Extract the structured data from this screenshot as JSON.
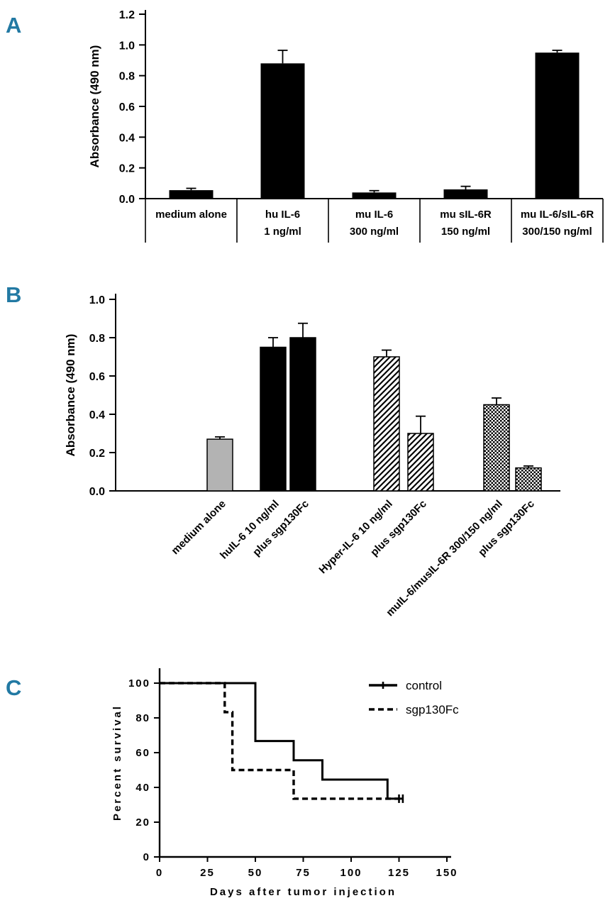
{
  "panels": [
    {
      "label": "A"
    },
    {
      "label": "B"
    },
    {
      "label": "C"
    }
  ],
  "colors": {
    "panel_label": "#2279a3",
    "bar_black": "#000000",
    "bar_gray": "#b3b3b3"
  },
  "chart_data": [
    {
      "id": "chartA",
      "type": "bar",
      "panel": "A",
      "title": "",
      "xlabel": "",
      "ylabel": "Absorbance (490 nm)",
      "ylim": [
        0,
        1.2
      ],
      "yticks": [
        "0.0",
        "0.2",
        "0.4",
        "0.6",
        "0.8",
        "1.0",
        "1.2"
      ],
      "categories": [
        {
          "line1": "medium alone",
          "line2": ""
        },
        {
          "line1": "hu IL-6",
          "line2": "1 ng/ml"
        },
        {
          "line1": "mu IL-6",
          "line2": "300 ng/ml"
        },
        {
          "line1": "mu sIL-6R",
          "line2": "150 ng/ml"
        },
        {
          "line1": "mu IL-6/sIL-6R",
          "line2": "300/150 ng/ml"
        }
      ],
      "values": [
        0.055,
        0.88,
        0.04,
        0.06,
        0.95
      ],
      "errors": [
        0.012,
        0.085,
        0.012,
        0.02,
        0.015
      ],
      "bar_style": [
        "black",
        "black",
        "black",
        "black",
        "black"
      ],
      "grid": false
    },
    {
      "id": "chartB",
      "type": "bar",
      "panel": "B",
      "title": "",
      "xlabel": "",
      "ylabel": "Absorbance (490 nm)",
      "ylim": [
        0,
        1.0
      ],
      "yticks": [
        "0.0",
        "0.2",
        "0.4",
        "0.6",
        "0.8",
        "1.0"
      ],
      "categories": [
        "medium alone",
        "huIL-6 10 ng/ml",
        "plus sgp130Fc",
        "Hyper-IL-6 10 ng/ml",
        "plus sgp130Fc",
        "muIL-6/musIL-6R 300/150 ng/ml",
        "plus sgp130Fc"
      ],
      "values": [
        0.27,
        0.75,
        0.8,
        0.7,
        0.3,
        0.45,
        0.12
      ],
      "errors": [
        0.012,
        0.05,
        0.075,
        0.035,
        0.09,
        0.035,
        0.01
      ],
      "bar_style": [
        "gray",
        "black",
        "black",
        "hatch",
        "hatch",
        "check",
        "check"
      ],
      "grid": false
    },
    {
      "id": "chartC",
      "type": "line",
      "panel": "C",
      "title": "",
      "xlabel": "Days after tumor injection",
      "ylabel": "Percent survival",
      "xlim": [
        0,
        150
      ],
      "ylim": [
        0,
        100
      ],
      "xticks": [
        "0",
        "25",
        "50",
        "75",
        "100",
        "125",
        "150"
      ],
      "yticks": [
        "0",
        "20",
        "40",
        "60",
        "80",
        "100"
      ],
      "series": [
        {
          "name": "control",
          "style": "solid",
          "points": [
            [
              0,
              100
            ],
            [
              50,
              100
            ],
            [
              50,
              66.7
            ],
            [
              70,
              66.7
            ],
            [
              70,
              55.6
            ],
            [
              85,
              55.6
            ],
            [
              85,
              44.5
            ],
            [
              119,
              44.5
            ],
            [
              119,
              33.5
            ],
            [
              127,
              33.5
            ]
          ]
        },
        {
          "name": "sgp130Fc",
          "style": "dashed",
          "points": [
            [
              0,
              100
            ],
            [
              34,
              100
            ],
            [
              34,
              83.3
            ],
            [
              38,
              83.3
            ],
            [
              38,
              50
            ],
            [
              70,
              50
            ],
            [
              70,
              33.5
            ],
            [
              125,
              33.5
            ]
          ]
        }
      ],
      "legend": [
        {
          "label": "control",
          "style": "solid"
        },
        {
          "label": "sgp130Fc",
          "style": "dashed"
        }
      ],
      "legend_position": "upper right",
      "grid": false
    }
  ]
}
